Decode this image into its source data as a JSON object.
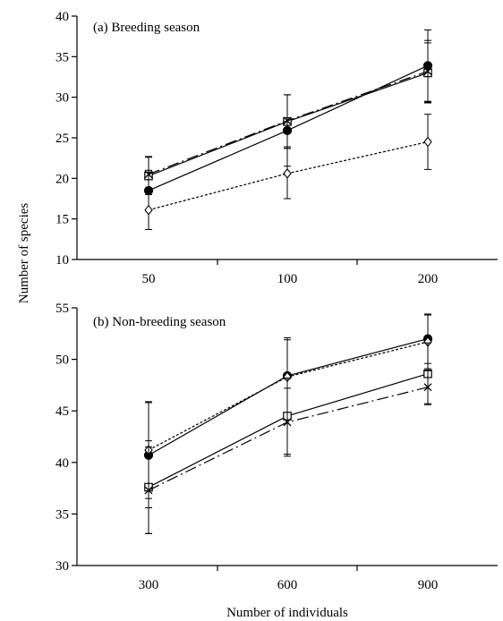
{
  "chart_data": [
    {
      "type": "line",
      "title": "(a) Breeding season",
      "xlabel": "",
      "ylabel": "Number of species",
      "categories": [
        "50",
        "100",
        "200"
      ],
      "ylim": [
        10,
        40
      ],
      "yticks": [
        "10",
        "15",
        "20",
        "25",
        "30",
        "35",
        "40"
      ],
      "grid": false,
      "series": [
        {
          "marker": "filled-circle",
          "line": "solid",
          "color": "#000000",
          "values": [
            18.5,
            25.9,
            33.9
          ],
          "error": [
            2.5,
            4.4,
            4.4
          ]
        },
        {
          "marker": "open-square",
          "line": "solid",
          "color": "#000000",
          "values": [
            20.3,
            27.0,
            33.0
          ],
          "error": [
            2.3,
            3.3,
            3.7
          ]
        },
        {
          "marker": "cross",
          "line": "long-dash",
          "color": "#000000",
          "values": [
            20.5,
            27.1,
            33.2
          ],
          "error": [
            2.2,
            3.2,
            3.8
          ]
        },
        {
          "marker": "open-diamond",
          "line": "dotted",
          "color": "#000000",
          "values": [
            16.1,
            20.6,
            24.5
          ],
          "error": [
            2.4,
            3.1,
            3.4
          ]
        }
      ]
    },
    {
      "type": "line",
      "title": "(b) Non-breeding season",
      "xlabel": "Number of individuals",
      "ylabel": "Number of species",
      "categories": [
        "300",
        "600",
        "900"
      ],
      "ylim": [
        30,
        55
      ],
      "yticks": [
        "30",
        "35",
        "40",
        "45",
        "50",
        "55"
      ],
      "grid": false,
      "series": [
        {
          "marker": "filled-circle",
          "line": "solid",
          "color": "#000000",
          "values": [
            40.7,
            48.4,
            52.0
          ],
          "error": [
            5.1,
            3.7,
            2.4
          ]
        },
        {
          "marker": "open-diamond",
          "line": "dotted",
          "color": "#000000",
          "values": [
            41.2,
            48.3,
            51.7
          ],
          "error": [
            4.7,
            3.6,
            2.6
          ]
        },
        {
          "marker": "open-square",
          "line": "solid",
          "color": "#000000",
          "values": [
            37.6,
            44.5,
            48.6
          ],
          "error": [
            4.5,
            3.7,
            3.0
          ]
        },
        {
          "marker": "cross",
          "line": "long-dash",
          "color": "#000000",
          "values": [
            37.3,
            43.9,
            47.3
          ],
          "error": [
            4.2,
            3.3,
            1.6
          ]
        }
      ]
    }
  ]
}
